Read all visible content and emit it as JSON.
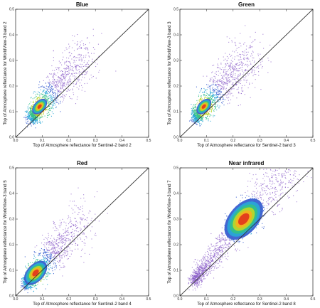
{
  "chart_data": [
    {
      "type": "scatter",
      "title": "Blue",
      "xlabel": "Top of Atmosphere reflectance for Sentinel-2 band 2",
      "ylabel": "Top of Atmosphere reflectance for WorldView-3 band 2",
      "xlim": [
        0,
        0.5
      ],
      "ylim": [
        0,
        0.5
      ],
      "xticks": [
        "0.0",
        "0.1",
        "0.2",
        "0.3",
        "0.4",
        "0.5"
      ],
      "yticks": [
        "0.0",
        "0.1",
        "0.2",
        "0.3",
        "0.4",
        "0.5"
      ],
      "one_to_one_line": true,
      "density_peak": {
        "x": 0.09,
        "y": 0.12
      },
      "cloud_core": [
        [
          0.06,
          0.08
        ],
        [
          0.09,
          0.12
        ],
        [
          0.14,
          0.18
        ],
        [
          0.2,
          0.25
        ],
        [
          0.27,
          0.32
        ]
      ]
    },
    {
      "type": "scatter",
      "title": "Green",
      "xlabel": "Top of Atmosphere reflectance for Sentinel-2 band 3",
      "ylabel": "Top of Atmosphere reflectance for WorldView-3 band 3",
      "xlim": [
        0,
        0.5
      ],
      "ylim": [
        0,
        0.5
      ],
      "xticks": [
        "0.0",
        "0.1",
        "0.2",
        "0.3",
        "0.4",
        "0.5"
      ],
      "yticks": [
        "0.0",
        "0.1",
        "0.2",
        "0.3",
        "0.4",
        "0.5"
      ],
      "one_to_one_line": true,
      "density_peak": {
        "x": 0.09,
        "y": 0.12
      },
      "cloud_core": [
        [
          0.06,
          0.08
        ],
        [
          0.09,
          0.12
        ],
        [
          0.14,
          0.18
        ],
        [
          0.2,
          0.25
        ],
        [
          0.27,
          0.32
        ]
      ]
    },
    {
      "type": "scatter",
      "title": "Red",
      "xlabel": "Top of Atmosphere reflectance for Sentinel-2 band 4",
      "ylabel": "Top of Atmosphere reflectance for WorldView-3 band 5",
      "xlim": [
        0,
        0.5
      ],
      "ylim": [
        0,
        0.5
      ],
      "xticks": [
        "0.0",
        "0.1",
        "0.2",
        "0.3",
        "0.4",
        "0.5"
      ],
      "yticks": [
        "0.0",
        "0.1",
        "0.2",
        "0.3",
        "0.4",
        "0.5"
      ],
      "one_to_one_line": true,
      "density_peak": {
        "x": 0.075,
        "y": 0.09
      },
      "cloud_core": [
        [
          0.04,
          0.05
        ],
        [
          0.075,
          0.09
        ],
        [
          0.12,
          0.15
        ],
        [
          0.18,
          0.22
        ],
        [
          0.26,
          0.3
        ]
      ]
    },
    {
      "type": "scatter",
      "title": "Near infrared",
      "xlabel": "Top of Atmosphere reflectance for Sentinel-2 band 8",
      "ylabel": "Top of Atmosphere reflectance for WorldView-3 band 7",
      "xlim": [
        0,
        0.5
      ],
      "ylim": [
        0,
        0.5
      ],
      "xticks": [
        "0.0",
        "0.1",
        "0.2",
        "0.3",
        "0.4",
        "0.5"
      ],
      "yticks": [
        "0.0",
        "0.1",
        "0.2",
        "0.3",
        "0.4",
        "0.5"
      ],
      "one_to_one_line": true,
      "density_peak": {
        "x": 0.24,
        "y": 0.3
      },
      "cloud_core": [
        [
          0.05,
          0.06
        ],
        [
          0.12,
          0.15
        ],
        [
          0.24,
          0.3
        ],
        [
          0.33,
          0.41
        ],
        [
          0.42,
          0.5
        ]
      ]
    }
  ],
  "density_colors": [
    "#6a3ab0",
    "#3a5fd0",
    "#2aa6d6",
    "#33c08a",
    "#b8d62a",
    "#f3b21f",
    "#e23a1c"
  ]
}
